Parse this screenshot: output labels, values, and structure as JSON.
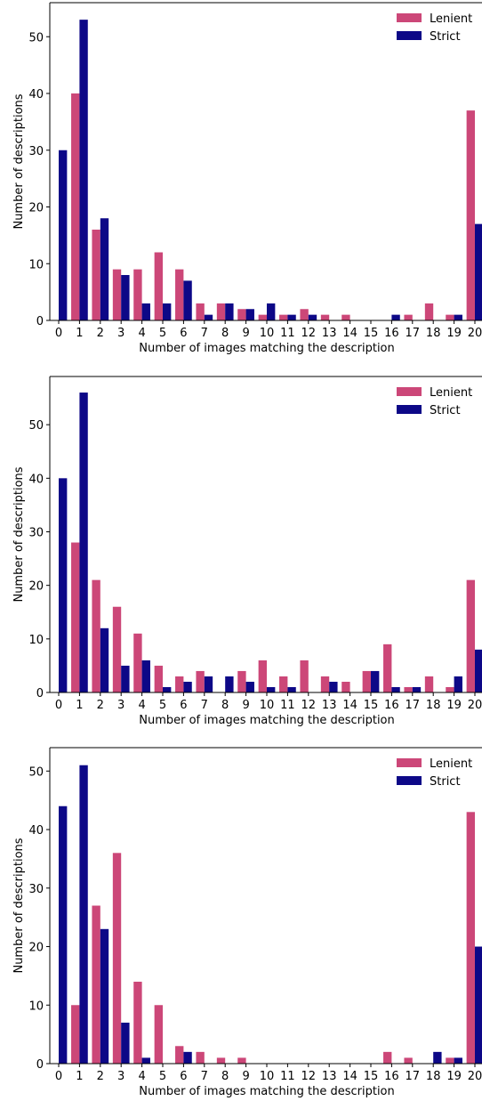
{
  "colors": {
    "lenient": "#cc4778",
    "strict": "#0d0887"
  },
  "chart_data": [
    {
      "type": "bar",
      "xlabel": "Number of images matching the description",
      "ylabel": "Number of descriptions",
      "ylim": [
        0,
        56
      ],
      "yticks": [
        0,
        10,
        20,
        30,
        40,
        50
      ],
      "categories": [
        "0",
        "1",
        "2",
        "3",
        "4",
        "5",
        "6",
        "7",
        "8",
        "9",
        "10",
        "11",
        "12",
        "13",
        "14",
        "15",
        "16",
        "17",
        "18",
        "19",
        "20"
      ],
      "legend": "top-right",
      "series": [
        {
          "name": "Lenient",
          "values": [
            0,
            40,
            16,
            9,
            9,
            12,
            9,
            3,
            3,
            2,
            1,
            1,
            2,
            1,
            1,
            0,
            0,
            1,
            3,
            1,
            37
          ]
        },
        {
          "name": "Strict",
          "values": [
            30,
            53,
            18,
            8,
            3,
            3,
            7,
            1,
            3,
            2,
            3,
            1,
            1,
            0,
            0,
            0,
            1,
            0,
            0,
            1,
            17
          ]
        }
      ]
    },
    {
      "type": "bar",
      "xlabel": "Number of images matching the description",
      "ylabel": "Number of descriptions",
      "ylim": [
        0,
        59
      ],
      "yticks": [
        0,
        10,
        20,
        30,
        40,
        50
      ],
      "categories": [
        "0",
        "1",
        "2",
        "3",
        "4",
        "5",
        "6",
        "7",
        "8",
        "9",
        "10",
        "11",
        "12",
        "13",
        "14",
        "15",
        "16",
        "17",
        "18",
        "19",
        "20"
      ],
      "legend": "top-right",
      "series": [
        {
          "name": "Lenient",
          "values": [
            0,
            28,
            21,
            16,
            11,
            5,
            3,
            4,
            0,
            4,
            6,
            3,
            6,
            3,
            2,
            4,
            9,
            1,
            3,
            1,
            21
          ]
        },
        {
          "name": "Strict",
          "values": [
            40,
            56,
            12,
            5,
            6,
            1,
            2,
            3,
            3,
            2,
            1,
            1,
            0,
            2,
            0,
            4,
            1,
            1,
            0,
            3,
            8
          ]
        }
      ]
    },
    {
      "type": "bar",
      "xlabel": "Number of images matching the description",
      "ylabel": "Number of descriptions",
      "ylim": [
        0,
        54
      ],
      "yticks": [
        0,
        10,
        20,
        30,
        40,
        50
      ],
      "categories": [
        "0",
        "1",
        "2",
        "3",
        "4",
        "5",
        "6",
        "7",
        "8",
        "9",
        "10",
        "11",
        "12",
        "13",
        "14",
        "15",
        "16",
        "17",
        "18",
        "19",
        "20"
      ],
      "legend": "top-right",
      "series": [
        {
          "name": "Lenient",
          "values": [
            0,
            10,
            27,
            36,
            14,
            10,
            3,
            2,
            1,
            1,
            0,
            0,
            0,
            0,
            0,
            0,
            2,
            1,
            0,
            1,
            43
          ]
        },
        {
          "name": "Strict",
          "values": [
            44,
            51,
            23,
            7,
            1,
            0,
            2,
            0,
            0,
            0,
            0,
            0,
            0,
            0,
            0,
            0,
            0,
            0,
            2,
            1,
            20
          ]
        }
      ]
    }
  ]
}
